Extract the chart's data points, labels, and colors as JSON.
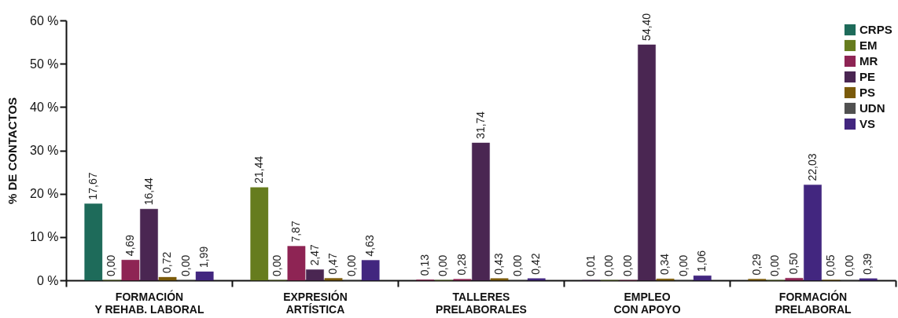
{
  "chart_data": {
    "type": "bar",
    "ylabel": "% DE CONTACTOS",
    "categories": [
      "FORMACIÓN\nY REHAB. LABORAL",
      "EXPRESIÓN\nARTÍSTICA",
      "TALLERES\nPRELABORALES",
      "EMPLEO\nCON APOYO",
      "FORMACIÓN\nPRELABORAL"
    ],
    "series": [
      {
        "name": "CRPS",
        "color": "#1e6b5a",
        "values": [
          17.67,
          21.44,
          0.13,
          0.01,
          0.29
        ],
        "value_labels": [
          "17,67",
          "21,44",
          "0,13",
          "0,01",
          "0,29"
        ],
        "colors": [
          "#1e6b5a",
          "#667c1e",
          "#8e2454",
          "#4a2652",
          "#7a5a0a"
        ]
      },
      {
        "name": "EM",
        "color": "#667c1e",
        "values": [
          0.0,
          0.0,
          0.0,
          0.0,
          0.0
        ],
        "value_labels": [
          "0,00",
          "0,00",
          "0,00",
          "0,00",
          "0,00"
        ]
      },
      {
        "name": "MR",
        "color": "#8e2454",
        "values": [
          4.69,
          7.87,
          0.28,
          0.0,
          0.5
        ],
        "value_labels": [
          "4,69",
          "7,87",
          "0,28",
          "0,00",
          "0,50"
        ]
      },
      {
        "name": "PE",
        "color": "#4a2652",
        "values": [
          16.44,
          2.47,
          31.74,
          54.4,
          22.03
        ],
        "value_labels": [
          "16,44",
          "2,47",
          "31,74",
          "54,40",
          "22,03"
        ],
        "colors": [
          "#4a2652",
          "#4a2652",
          "#4a2652",
          "#4a2652",
          "#42267f"
        ]
      },
      {
        "name": "PS",
        "color": "#7a5a0a",
        "values": [
          0.72,
          0.47,
          0.43,
          0.34,
          0.05
        ],
        "value_labels": [
          "0,72",
          "0,47",
          "0,43",
          "0,34",
          "0,05"
        ]
      },
      {
        "name": "UDN",
        "color": "#505050",
        "values": [
          0.0,
          0.0,
          0.0,
          0.0,
          0.0
        ],
        "value_labels": [
          "0,00",
          "0,00",
          "0,00",
          "0,00",
          "0,00"
        ]
      },
      {
        "name": "VS",
        "color": "#42267f",
        "values": [
          1.99,
          4.63,
          0.42,
          1.06,
          0.39
        ],
        "value_labels": [
          "1,99",
          "4,63",
          "0,42",
          "1,06",
          "0,39"
        ]
      }
    ],
    "ylim": [
      0,
      60
    ],
    "yticks": [
      {
        "value": 0,
        "label": "0 %"
      },
      {
        "value": 10,
        "label": "10 %"
      },
      {
        "value": 20,
        "label": "20 %"
      },
      {
        "value": 30,
        "label": "30 %"
      },
      {
        "value": 40,
        "label": "40 %"
      },
      {
        "value": 50,
        "label": "50 %"
      },
      {
        "value": 60,
        "label": "60 %"
      }
    ],
    "grid": false,
    "legend": "top right"
  }
}
